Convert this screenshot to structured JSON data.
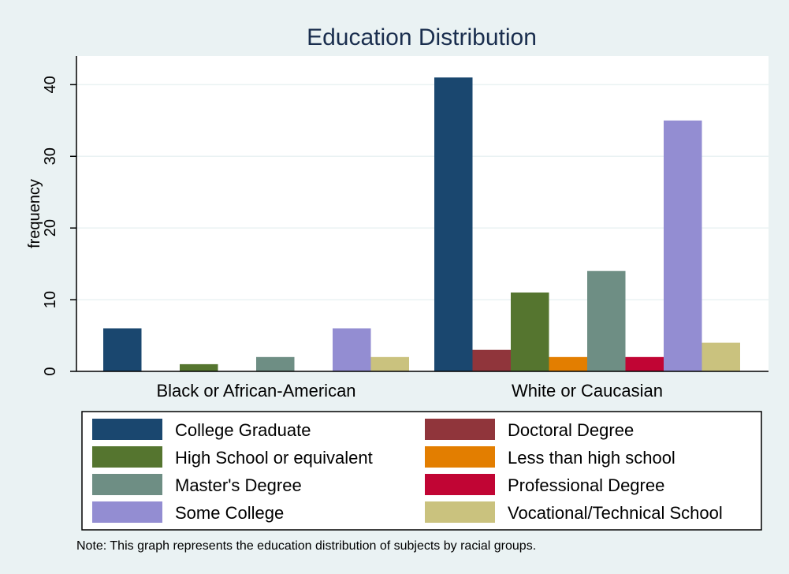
{
  "chart_data": {
    "type": "bar",
    "title": "Education Distribution",
    "ylabel": "frequency",
    "xlabel": "",
    "ylim": [
      0,
      44
    ],
    "yticks": [
      0,
      10,
      20,
      30,
      40
    ],
    "grid": true,
    "categories": [
      "Black or African-American",
      "White or Caucasian"
    ],
    "series": [
      {
        "name": "College Graduate",
        "values": [
          6,
          41
        ],
        "color": "#1a476f"
      },
      {
        "name": "Doctoral Degree",
        "values": [
          0,
          3
        ],
        "color": "#90353b"
      },
      {
        "name": "High School or equivalent",
        "values": [
          1,
          11
        ],
        "color": "#55752f"
      },
      {
        "name": "Less than high school",
        "values": [
          0,
          2
        ],
        "color": "#e37e00"
      },
      {
        "name": "Master's Degree",
        "values": [
          2,
          14
        ],
        "color": "#6e8e84"
      },
      {
        "name": "Professional Degree",
        "values": [
          0,
          2
        ],
        "color": "#c10534"
      },
      {
        "name": "Some College",
        "values": [
          6,
          35
        ],
        "color": "#938dd2"
      },
      {
        "name": "Vocational/Technical School",
        "values": [
          2,
          4
        ],
        "color": "#cac27e"
      }
    ],
    "legend_position": "bottom",
    "legend_columns": 2,
    "note": "Note: This graph represents the education distribution of subjects by racial groups."
  },
  "colors": {
    "background": "#eaf2f3",
    "plot_background": "#ffffff",
    "gridline": "#eaf2f3",
    "title": "#1a2e4e"
  }
}
